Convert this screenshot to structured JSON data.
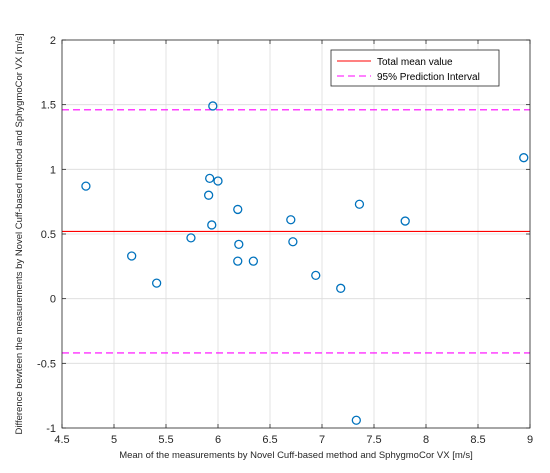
{
  "chart_data": {
    "type": "scatter",
    "xlabel": "Mean of the measurements by Novel Cuff-based method and SphygmoCor VX [m/s]",
    "ylabel": "Difference bewteen the measurements by Novel Cuff-based method and SphygmoCor VX [m/s]",
    "xlim": [
      4.5,
      9
    ],
    "ylim": [
      -1,
      2
    ],
    "xticks": [
      4.5,
      5,
      5.5,
      6,
      6.5,
      7,
      7.5,
      8,
      8.5,
      9
    ],
    "yticks": [
      -1,
      -0.5,
      0,
      0.5,
      1,
      1.5,
      2
    ],
    "xtick_labels": [
      "4.5",
      "5",
      "5.5",
      "6",
      "6.5",
      "7",
      "7.5",
      "8",
      "8.5",
      "9"
    ],
    "ytick_labels": [
      "-1",
      "-0.5",
      "0",
      "0.5",
      "1",
      "1.5",
      "2"
    ],
    "grid": true,
    "legend_position": "top-right",
    "points": {
      "color": "#0072bd",
      "x": [
        4.73,
        5.17,
        5.41,
        5.74,
        5.91,
        5.92,
        5.94,
        5.95,
        6.0,
        6.19,
        6.19,
        6.2,
        6.34,
        6.7,
        6.72,
        6.94,
        7.18,
        7.33,
        7.36,
        7.8,
        8.94
      ],
      "y": [
        0.87,
        0.33,
        0.12,
        0.47,
        0.8,
        0.93,
        0.57,
        1.49,
        0.91,
        0.69,
        0.29,
        0.42,
        0.29,
        0.61,
        0.44,
        0.18,
        0.08,
        -0.94,
        0.73,
        0.6,
        1.09
      ]
    },
    "lines": [
      {
        "name": "Total mean value",
        "y": 0.52,
        "color": "#ff0000",
        "style": "solid"
      },
      {
        "name": "95% Prediction Interval",
        "y": 1.46,
        "color": "#ff00ff",
        "style": "dashed"
      },
      {
        "name": "95% Prediction Interval",
        "y": -0.42,
        "color": "#ff00ff",
        "style": "dashed"
      }
    ],
    "legend": [
      {
        "label": "Total mean value",
        "color": "#ff0000",
        "style": "solid"
      },
      {
        "label": "95% Prediction Interval",
        "color": "#ff00ff",
        "style": "dashed"
      }
    ]
  }
}
